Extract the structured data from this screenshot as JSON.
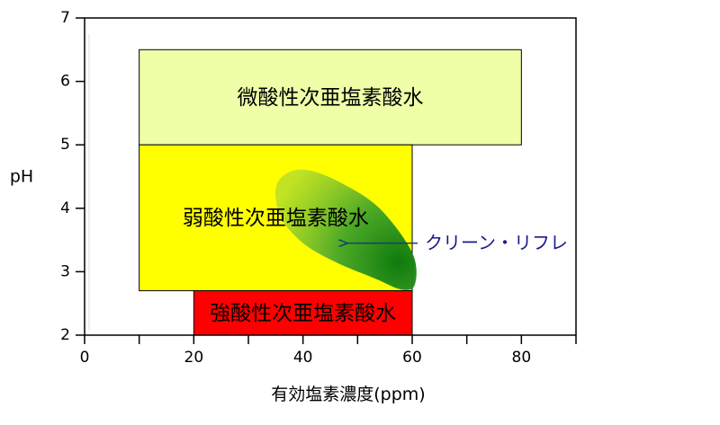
{
  "chart_data": {
    "type": "area",
    "xlabel": "有効塩素濃度(ppm)",
    "ylabel": "pH",
    "xlim": [
      0,
      90
    ],
    "ylim": [
      2,
      7
    ],
    "x_ticks": [
      0,
      20,
      40,
      60,
      80
    ],
    "x_minor_ticks": [
      10,
      30,
      50,
      70,
      90
    ],
    "y_ticks": [
      2,
      3,
      4,
      5,
      6,
      7
    ],
    "regions": [
      {
        "label": "微酸性次亜塩素酸水",
        "x": [
          10,
          80
        ],
        "y": [
          5.0,
          6.5
        ],
        "color": "#eeffa8"
      },
      {
        "label": "弱酸性次亜塩素酸水",
        "x": [
          10,
          60
        ],
        "y": [
          2.7,
          5.0
        ],
        "color": "#ffff00"
      },
      {
        "label": "強酸性次亜塩素酸水",
        "x": [
          20,
          60
        ],
        "y": [
          2.0,
          2.7
        ],
        "color": "#ff0000"
      }
    ],
    "highlight": {
      "label": "クリーン・リフレ",
      "color": "#148c14",
      "center": [
        57.5,
        3.15
      ],
      "outline": [
        [
          35,
          4.3
        ],
        [
          37,
          4.55
        ],
        [
          41,
          4.6
        ],
        [
          47,
          4.4
        ],
        [
          54,
          4.0
        ],
        [
          60,
          3.3
        ],
        [
          60.5,
          2.8
        ],
        [
          58,
          2.72
        ],
        [
          53,
          2.9
        ],
        [
          46,
          3.15
        ],
        [
          40,
          3.45
        ],
        [
          36,
          3.85
        ]
      ]
    },
    "annotation": {
      "text": "クリーン・リフレ",
      "arrow_from": [
        61,
        3.45
      ],
      "arrow_to": [
        48,
        3.45
      ]
    },
    "grid": false,
    "legend": "none"
  }
}
